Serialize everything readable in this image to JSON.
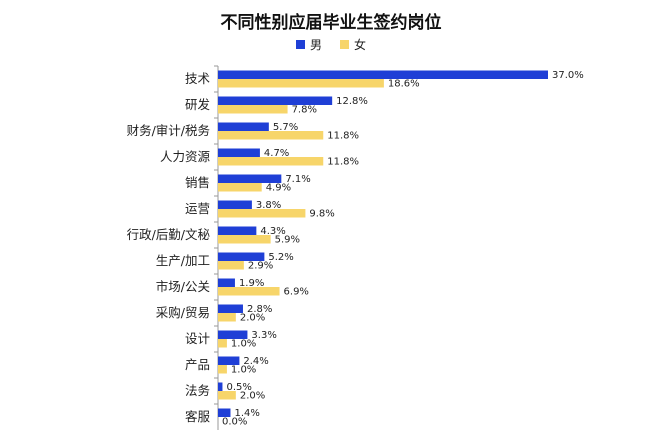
{
  "chart_data": {
    "type": "bar",
    "orientation": "horizontal",
    "title": "不同性别应届毕业生签约岗位",
    "categories": [
      "技术",
      "研发",
      "财务/审计/税务",
      "人力资源",
      "销售",
      "运营",
      "行政/后勤/文秘",
      "生产/加工",
      "市场/公关",
      "采购/贸易",
      "设计",
      "产品",
      "法务",
      "客服"
    ],
    "series": [
      {
        "name": "男",
        "color": "#1f3fd6",
        "values": [
          37.0,
          12.8,
          5.7,
          4.7,
          7.1,
          3.8,
          4.3,
          5.2,
          1.9,
          2.8,
          3.3,
          2.4,
          0.5,
          1.4
        ],
        "labels": [
          "37.0%",
          "12.8%",
          "5.7%",
          "4.7%",
          "7.1%",
          "3.8%",
          "4.3%",
          "5.2%",
          "1.9%",
          "2.8%",
          "3.3%",
          "2.4%",
          "0.5%",
          "1.4%"
        ]
      },
      {
        "name": "女",
        "color": "#f7d56a",
        "values": [
          18.6,
          7.8,
          11.8,
          11.8,
          4.9,
          9.8,
          5.9,
          2.9,
          6.9,
          2.0,
          1.0,
          1.0,
          2.0,
          0.0
        ],
        "labels": [
          "18.6%",
          "7.8%",
          "11.8%",
          "11.8%",
          "4.9%",
          "9.8%",
          "5.9%",
          "2.9%",
          "6.9%",
          "2.0%",
          "1.0%",
          "1.0%",
          "2.0%",
          "0.0%"
        ]
      }
    ],
    "unit": "%",
    "legend_position": "top-center",
    "grid": false
  }
}
